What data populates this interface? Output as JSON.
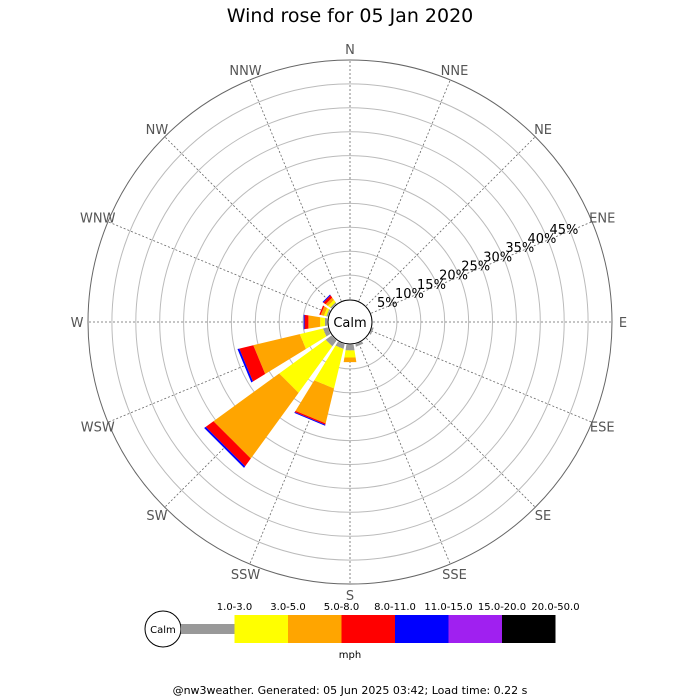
{
  "title": "Wind rose for 05 Jan 2020",
  "footer": "@nw3weather. Generated: 05 Jun 2025 03:42; Load time: 0.22 s",
  "chart_data": {
    "type": "wind-rose",
    "title": "Wind rose for 05 Jan 2020",
    "directions": [
      "N",
      "NNE",
      "NE",
      "ENE",
      "E",
      "ESE",
      "SE",
      "SSE",
      "S",
      "SSW",
      "SW",
      "WSW",
      "W",
      "WNW",
      "NW",
      "NNW"
    ],
    "radial_ticks": [
      "5%",
      "10%",
      "15%",
      "20%",
      "25%",
      "30%",
      "35%",
      "40%",
      "45%"
    ],
    "radial_max_percent": 50,
    "calm_label": "Calm",
    "units": "mph",
    "speed_bins": [
      {
        "label": "1.0-3.0",
        "color": "#999999"
      },
      {
        "label": "3.0-5.0",
        "color": "#ffff00"
      },
      {
        "label": "5.0-8.0",
        "color": "#ffa500"
      },
      {
        "label": "8.0-11.0",
        "color": "#ff0000"
      },
      {
        "label": "11.0-15.0",
        "color": "#0000ff"
      },
      {
        "label": "15.0-20.0",
        "color": "#a020f0"
      },
      {
        "label": "20.0-50.0",
        "color": "#000000"
      }
    ],
    "series": [
      {
        "direction": "ESE",
        "values": [
          0.3,
          0,
          0,
          0,
          0,
          0,
          0
        ]
      },
      {
        "direction": "SSE",
        "values": [
          0.5,
          0,
          0,
          0,
          0,
          0,
          0
        ]
      },
      {
        "direction": "S",
        "values": [
          1.2,
          1.5,
          1.0,
          0,
          0,
          0,
          0
        ]
      },
      {
        "direction": "SSW",
        "values": [
          1.0,
          8.5,
          7.5,
          0.3,
          0.2,
          0,
          0
        ]
      },
      {
        "direction": "SW",
        "values": [
          1.5,
          12.0,
          17.0,
          2.0,
          0.4,
          0,
          0
        ]
      },
      {
        "direction": "WSW",
        "values": [
          1.0,
          5.0,
          10.0,
          3.0,
          0.4,
          0,
          0
        ]
      },
      {
        "direction": "W",
        "values": [
          0.5,
          1.0,
          2.5,
          0.8,
          0.2,
          0,
          0
        ]
      },
      {
        "direction": "WNW",
        "values": [
          0.3,
          0.5,
          0.7,
          0.3,
          0,
          0,
          0
        ]
      },
      {
        "direction": "NW",
        "values": [
          0.3,
          0.6,
          0.6,
          0.6,
          0.2,
          0,
          0
        ]
      }
    ]
  }
}
